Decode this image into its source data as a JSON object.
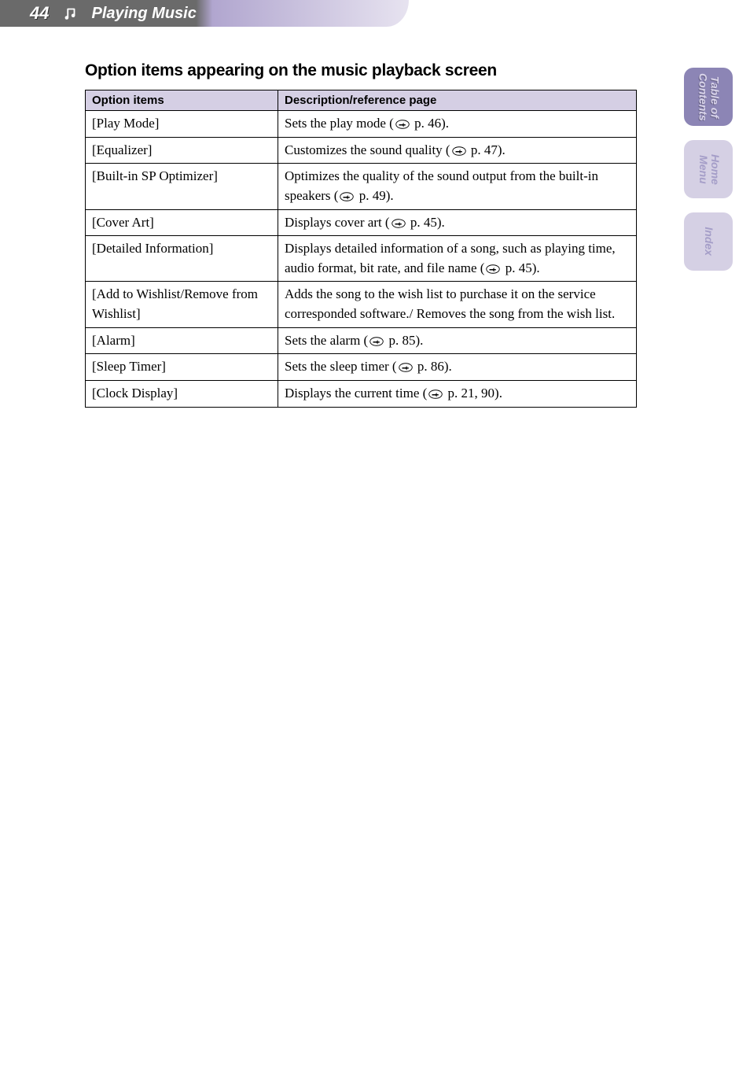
{
  "header": {
    "page_number": "44",
    "chapter_title": "Playing Music",
    "bar_gradient_from": "#6a6a6a",
    "bar_gradient_mid": "#b1a6cf",
    "bar_gradient_to": "#e7e3f0",
    "text_color": "#ffffff"
  },
  "section": {
    "heading": "Option items appearing on the music playback screen"
  },
  "table": {
    "header_bg": "#d5cfe4",
    "border_color": "#000000",
    "columns": [
      "Option items",
      "Description/reference page"
    ],
    "rows": [
      {
        "item": "[Play Mode]",
        "desc_before": "Sets the play mode (",
        "page_ref": " p. 46).",
        "desc_after": ""
      },
      {
        "item": "[Equalizer]",
        "desc_before": "Customizes the sound quality (",
        "page_ref": " p. 47).",
        "desc_after": ""
      },
      {
        "item": "[Built-in SP Optimizer]",
        "desc_before": "Optimizes the quality of the sound output from the built-in speakers (",
        "page_ref": " p. 49).",
        "desc_after": ""
      },
      {
        "item": "[Cover Art]",
        "desc_before": "Displays cover art (",
        "page_ref": " p. 45).",
        "desc_after": ""
      },
      {
        "item": "[Detailed Information]",
        "desc_before": "Displays detailed information of a song, such as playing time, audio format, bit rate, and file name (",
        "page_ref": " p. 45).",
        "desc_after": ""
      },
      {
        "item": "[Add to Wishlist/Remove from Wishlist]",
        "desc_before": "Adds the song to the wish list to purchase it on the service corresponded software./ Removes the song from the wish list.",
        "page_ref": "",
        "desc_after": ""
      },
      {
        "item": "[Alarm]",
        "desc_before": "Sets the alarm (",
        "page_ref": " p. 85).",
        "desc_after": ""
      },
      {
        "item": "[Sleep Timer]",
        "desc_before": "Sets the sleep timer (",
        "page_ref": " p. 86).",
        "desc_after": ""
      },
      {
        "item": "[Clock Display]",
        "desc_before": "Displays the current time (",
        "page_ref": " p. 21, 90).",
        "desc_after": ""
      }
    ]
  },
  "side_tabs": {
    "active_bg": "#8c85b5",
    "inactive_bg": "#d5d0e4",
    "active_text_color": "#d9d4ea",
    "inactive_text_color": "#a59ec8",
    "tabs": [
      {
        "label": "Table of\nContents",
        "active": true
      },
      {
        "label": "Home\nMenu",
        "active": false
      },
      {
        "label": "Index",
        "active": false
      }
    ]
  }
}
